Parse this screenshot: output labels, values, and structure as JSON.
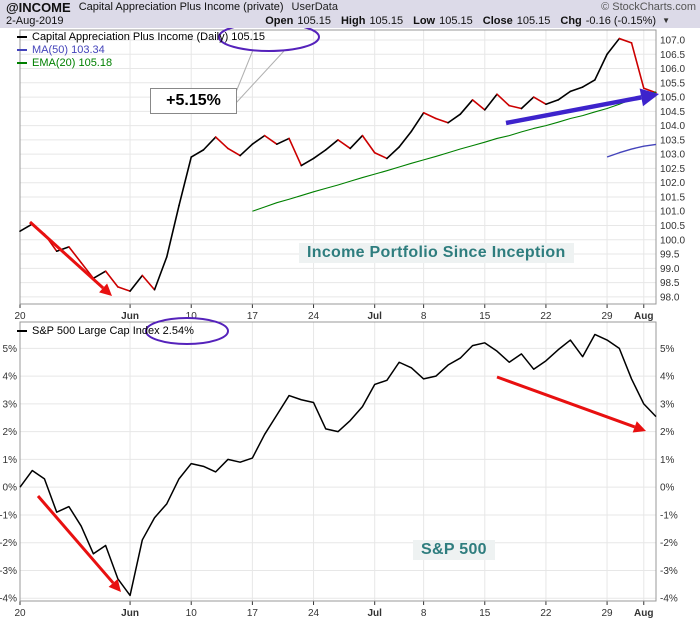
{
  "header": {
    "symbol": "@INCOME",
    "title": "Capital Appreciation Plus Income (private)",
    "source": "UserData",
    "date": "2-Aug-2019",
    "copyright": "© StockCharts.com",
    "quote": [
      {
        "label": "Open",
        "value": "105.15"
      },
      {
        "label": "High",
        "value": "105.15"
      },
      {
        "label": "Low",
        "value": "105.15"
      },
      {
        "label": "Close",
        "value": "105.15"
      },
      {
        "label": "Chg",
        "value": "-0.16 (-0.15%)"
      }
    ],
    "direction_icon": "▼"
  },
  "annotations": {
    "gain_callout": "+5.15%",
    "portfolio_label": "Income Portfolio Since Inception",
    "sp500_label": "S&P 500"
  },
  "colors": {
    "header_bg": "#dcdae8",
    "grid": "#e7e7e7",
    "border": "#999999",
    "axis_text": "#333333",
    "price_up": "#000000",
    "price_down": "#cc0000",
    "ma50": "#4444bb",
    "ema20": "#008000",
    "annotation_purple": "#5522bb",
    "arrow_red": "#e81010",
    "arrow_blue": "#3d23cc",
    "label_teal": "#2e7d7e"
  },
  "chart_data": [
    {
      "type": "line",
      "title": "Capital Appreciation Plus Income (Daily)",
      "x_description": "Trading days, May 20 - Aug 2 2019",
      "last": 105.15,
      "ma50_value": 103.34,
      "ema20_value": 105.18,
      "ylim": [
        98.0,
        107.0
      ],
      "y_format": "price",
      "y_ticks": [
        98,
        98.5,
        99,
        99.5,
        100,
        100.5,
        101,
        101.5,
        102,
        102.5,
        103,
        103.5,
        104,
        104.5,
        105,
        105.5,
        106,
        106.5,
        107
      ],
      "x_ticks": [
        {
          "index": 0,
          "label": "20"
        },
        {
          "index": 9,
          "label": "Jun"
        },
        {
          "index": 14,
          "label": "10"
        },
        {
          "index": 19,
          "label": "17"
        },
        {
          "index": 24,
          "label": "24"
        },
        {
          "index": 29,
          "label": "Jul"
        },
        {
          "index": 33,
          "label": "8"
        },
        {
          "index": 38,
          "label": "15"
        },
        {
          "index": 43,
          "label": "22"
        },
        {
          "index": 48,
          "label": "29"
        },
        {
          "index": 51,
          "label": "Aug"
        }
      ],
      "legend": [
        {
          "label": "Capital Appreciation Plus Income (Daily) 105.15",
          "color": "#000000"
        },
        {
          "label": "MA(50) 103.34",
          "color": "#4444bb"
        },
        {
          "label": "EMA(20) 105.18",
          "color": "#008000"
        }
      ],
      "series": [
        {
          "name": "price",
          "style": "updown",
          "start_index": 0,
          "values": [
            100.3,
            100.55,
            100.2,
            99.6,
            99.75,
            99.2,
            98.65,
            98.9,
            98.35,
            98.2,
            98.75,
            98.25,
            99.4,
            101.2,
            102.9,
            103.15,
            103.6,
            103.2,
            102.95,
            103.35,
            103.65,
            103.35,
            103.55,
            102.6,
            102.85,
            103.15,
            103.5,
            103.2,
            103.65,
            103.05,
            102.85,
            103.25,
            103.8,
            104.45,
            104.25,
            104.1,
            104.4,
            104.9,
            104.55,
            105.1,
            104.7,
            104.6,
            105.0,
            104.75,
            104.9,
            105.2,
            105.35,
            105.6,
            106.5,
            107.05,
            106.9,
            105.31,
            105.15
          ]
        },
        {
          "name": "EMA(20)",
          "color": "#008000",
          "width": 1.1,
          "start_index": 19,
          "values": [
            101.0,
            101.15,
            101.3,
            101.42,
            101.55,
            101.68,
            101.8,
            101.92,
            102.05,
            102.18,
            102.3,
            102.42,
            102.55,
            102.68,
            102.8,
            102.92,
            103.05,
            103.18,
            103.3,
            103.42,
            103.55,
            103.65,
            103.78,
            103.9,
            104.0,
            104.12,
            104.25,
            104.35,
            104.48,
            104.6,
            104.75,
            104.92,
            105.08,
            105.18
          ]
        },
        {
          "name": "MA(50)",
          "color": "#4444bb",
          "width": 1.4,
          "start_index": 48,
          "values": [
            102.9,
            103.05,
            103.18,
            103.28,
            103.34
          ]
        }
      ]
    },
    {
      "type": "line",
      "title": "S&P 500 Large Cap Index",
      "x_description": "Trading days, May 20 - Aug 2 2019",
      "last_pct": 2.54,
      "ylim": [
        -4,
        5
      ],
      "y_format": "percent",
      "y_ticks": [
        -4,
        -3,
        -2,
        -1,
        0,
        1,
        2,
        3,
        4,
        5
      ],
      "x_ticks": [
        {
          "index": 0,
          "label": "20"
        },
        {
          "index": 9,
          "label": "Jun"
        },
        {
          "index": 14,
          "label": "10"
        },
        {
          "index": 19,
          "label": "17"
        },
        {
          "index": 24,
          "label": "24"
        },
        {
          "index": 29,
          "label": "Jul"
        },
        {
          "index": 33,
          "label": "8"
        },
        {
          "index": 38,
          "label": "15"
        },
        {
          "index": 43,
          "label": "22"
        },
        {
          "index": 48,
          "label": "29"
        },
        {
          "index": 51,
          "label": "Aug"
        }
      ],
      "legend": [
        {
          "label": "S&P 500 Large Cap Index 2.54%",
          "color": "#000000"
        }
      ],
      "series": [
        {
          "name": "sp500_pct_change",
          "style": "plain",
          "color": "#000000",
          "width": 1.5,
          "start_index": 0,
          "values": [
            0.0,
            0.6,
            0.3,
            -0.9,
            -0.7,
            -1.4,
            -2.4,
            -2.1,
            -3.3,
            -3.9,
            -1.9,
            -1.1,
            -0.6,
            0.3,
            0.85,
            0.75,
            0.55,
            1.0,
            0.9,
            1.05,
            1.9,
            2.6,
            3.3,
            3.15,
            3.05,
            2.1,
            2.0,
            2.4,
            2.9,
            3.7,
            3.85,
            4.5,
            4.3,
            3.9,
            4.0,
            4.4,
            4.65,
            5.1,
            5.2,
            4.9,
            4.5,
            4.8,
            4.25,
            4.55,
            4.95,
            5.3,
            4.7,
            5.5,
            5.3,
            5.0,
            3.9,
            3.0,
            2.54
          ]
        }
      ]
    }
  ]
}
